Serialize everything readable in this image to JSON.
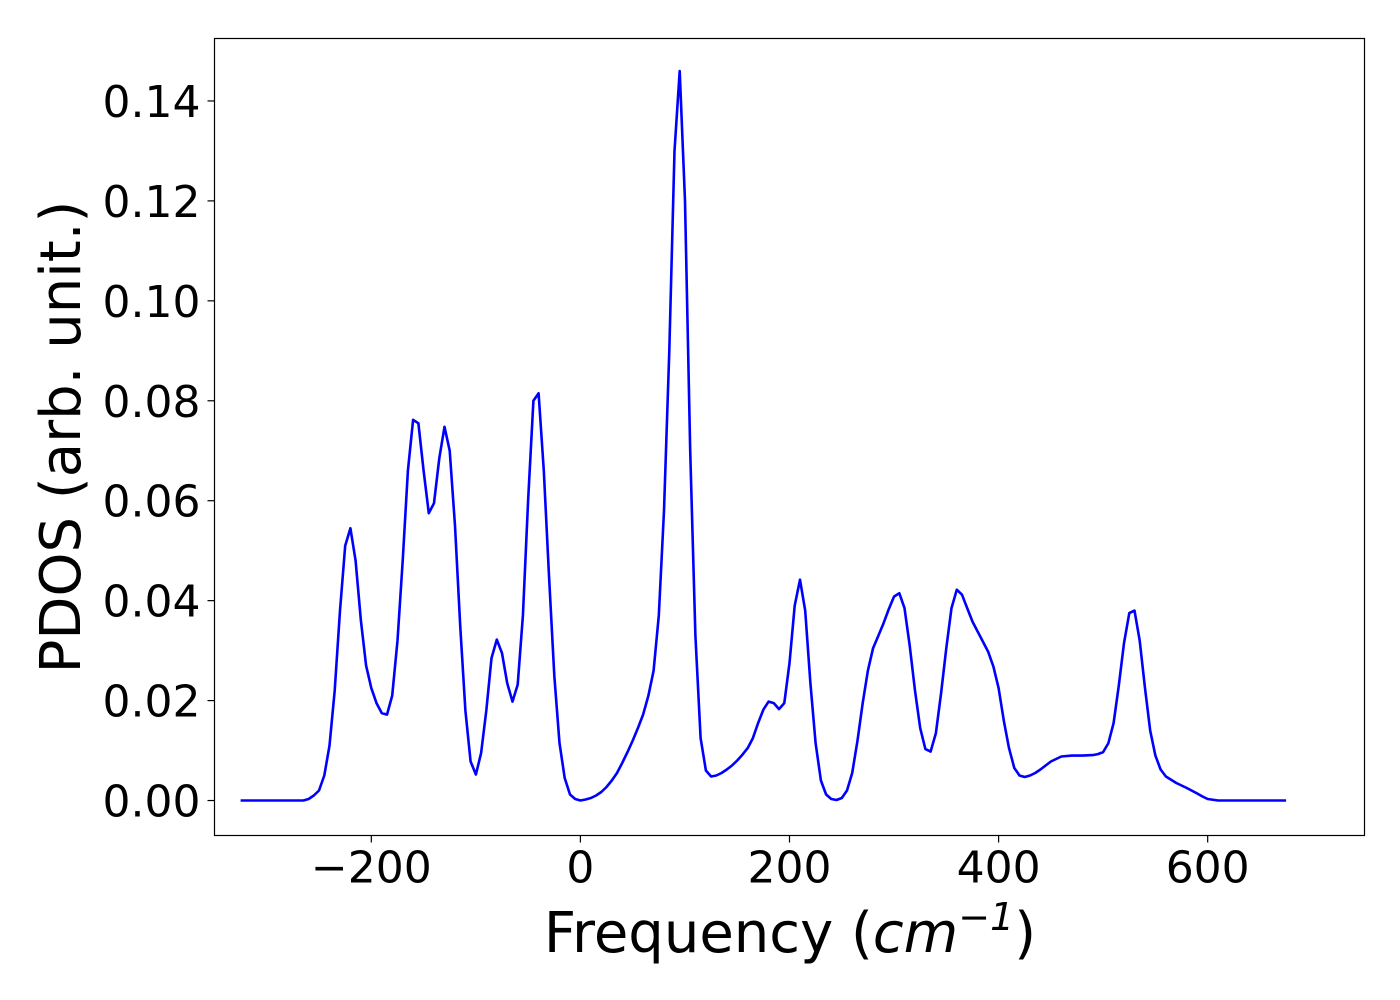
{
  "chart_data": {
    "type": "line",
    "title": "",
    "xlabel_main": "Frequency (",
    "xlabel_math": "cm",
    "xlabel_sup": "−1",
    "xlabel_close": ")",
    "ylabel": "PDOS (arb. unit.)",
    "xlim": [
      -350,
      750
    ],
    "ylim": [
      -0.007,
      0.1525
    ],
    "xticks": [
      -200,
      0,
      200,
      400,
      600
    ],
    "xtick_labels": [
      "−200",
      "0",
      "200",
      "400",
      "600"
    ],
    "yticks": [
      0.0,
      0.02,
      0.04,
      0.06,
      0.08,
      0.1,
      0.12,
      0.14
    ],
    "ytick_labels": [
      "0.00",
      "0.02",
      "0.04",
      "0.06",
      "0.08",
      "0.10",
      "0.12",
      "0.14"
    ],
    "grid": false,
    "legend": "none",
    "series": [
      {
        "color": "#0000ff",
        "x": [
          -325,
          -300,
          -280,
          -265,
          -260,
          -255,
          -250,
          -245,
          -240,
          -235,
          -230,
          -225,
          -220,
          -215,
          -210,
          -205,
          -200,
          -195,
          -190,
          -185,
          -180,
          -175,
          -170,
          -165,
          -160,
          -155,
          -150,
          -145,
          -140,
          -135,
          -130,
          -125,
          -120,
          -115,
          -110,
          -105,
          -100,
          -95,
          -90,
          -85,
          -80,
          -75,
          -70,
          -65,
          -60,
          -55,
          -50,
          -45,
          -40,
          -35,
          -30,
          -25,
          -20,
          -15,
          -10,
          -5,
          0,
          5,
          10,
          15,
          20,
          25,
          30,
          35,
          40,
          45,
          50,
          55,
          60,
          65,
          70,
          75,
          80,
          85,
          90,
          95,
          100,
          105,
          110,
          115,
          120,
          125,
          130,
          135,
          140,
          145,
          150,
          155,
          160,
          165,
          170,
          175,
          180,
          185,
          190,
          195,
          200,
          205,
          210,
          215,
          220,
          225,
          230,
          235,
          240,
          245,
          250,
          255,
          260,
          265,
          270,
          275,
          280,
          285,
          290,
          295,
          300,
          305,
          310,
          315,
          320,
          325,
          330,
          335,
          340,
          345,
          350,
          355,
          360,
          365,
          370,
          375,
          380,
          385,
          390,
          395,
          400,
          405,
          410,
          415,
          420,
          425,
          430,
          435,
          440,
          450,
          460,
          470,
          480,
          490,
          495,
          500,
          505,
          510,
          515,
          520,
          525,
          530,
          535,
          540,
          545,
          550,
          555,
          560,
          570,
          580,
          590,
          595,
          600,
          610,
          620,
          640,
          660,
          675
        ],
        "y": [
          0.0,
          0.0,
          0.0,
          0.0,
          0.0003,
          0.001,
          0.002,
          0.005,
          0.011,
          0.022,
          0.038,
          0.051,
          0.0545,
          0.048,
          0.036,
          0.027,
          0.0225,
          0.0195,
          0.0175,
          0.0172,
          0.021,
          0.032,
          0.048,
          0.066,
          0.0762,
          0.0755,
          0.066,
          0.0575,
          0.0595,
          0.0685,
          0.0748,
          0.07,
          0.055,
          0.035,
          0.018,
          0.0078,
          0.0052,
          0.0095,
          0.018,
          0.0285,
          0.0322,
          0.0295,
          0.0235,
          0.0198,
          0.0232,
          0.037,
          0.06,
          0.08,
          0.0815,
          0.066,
          0.045,
          0.025,
          0.0115,
          0.0045,
          0.0012,
          0.0003,
          0.0,
          0.0002,
          0.0005,
          0.001,
          0.0017,
          0.0027,
          0.004,
          0.0055,
          0.0075,
          0.0097,
          0.012,
          0.0145,
          0.0172,
          0.021,
          0.026,
          0.037,
          0.058,
          0.09,
          0.13,
          0.146,
          0.12,
          0.07,
          0.033,
          0.0125,
          0.006,
          0.0048,
          0.005,
          0.0055,
          0.0062,
          0.007,
          0.008,
          0.0092,
          0.0105,
          0.0125,
          0.0155,
          0.0182,
          0.0198,
          0.0195,
          0.0183,
          0.0195,
          0.0275,
          0.039,
          0.0442,
          0.038,
          0.0235,
          0.0115,
          0.004,
          0.0012,
          0.0003,
          0.0001,
          0.0005,
          0.002,
          0.0055,
          0.012,
          0.0195,
          0.026,
          0.0305,
          0.033,
          0.0355,
          0.0383,
          0.0408,
          0.0415,
          0.0385,
          0.031,
          0.022,
          0.0145,
          0.0103,
          0.0098,
          0.0135,
          0.0215,
          0.0305,
          0.0385,
          0.0422,
          0.0412,
          0.0385,
          0.0358,
          0.0338,
          0.0318,
          0.0298,
          0.0268,
          0.0225,
          0.016,
          0.0105,
          0.0065,
          0.005,
          0.0047,
          0.005,
          0.0055,
          0.0062,
          0.0078,
          0.0088,
          0.009,
          0.009,
          0.0091,
          0.0093,
          0.0097,
          0.0115,
          0.0155,
          0.023,
          0.0315,
          0.0375,
          0.038,
          0.032,
          0.0225,
          0.014,
          0.009,
          0.0062,
          0.0048,
          0.0035,
          0.0025,
          0.0014,
          0.0008,
          0.0003,
          0.0,
          0.0,
          0.0,
          0.0,
          0.0
        ]
      }
    ]
  }
}
